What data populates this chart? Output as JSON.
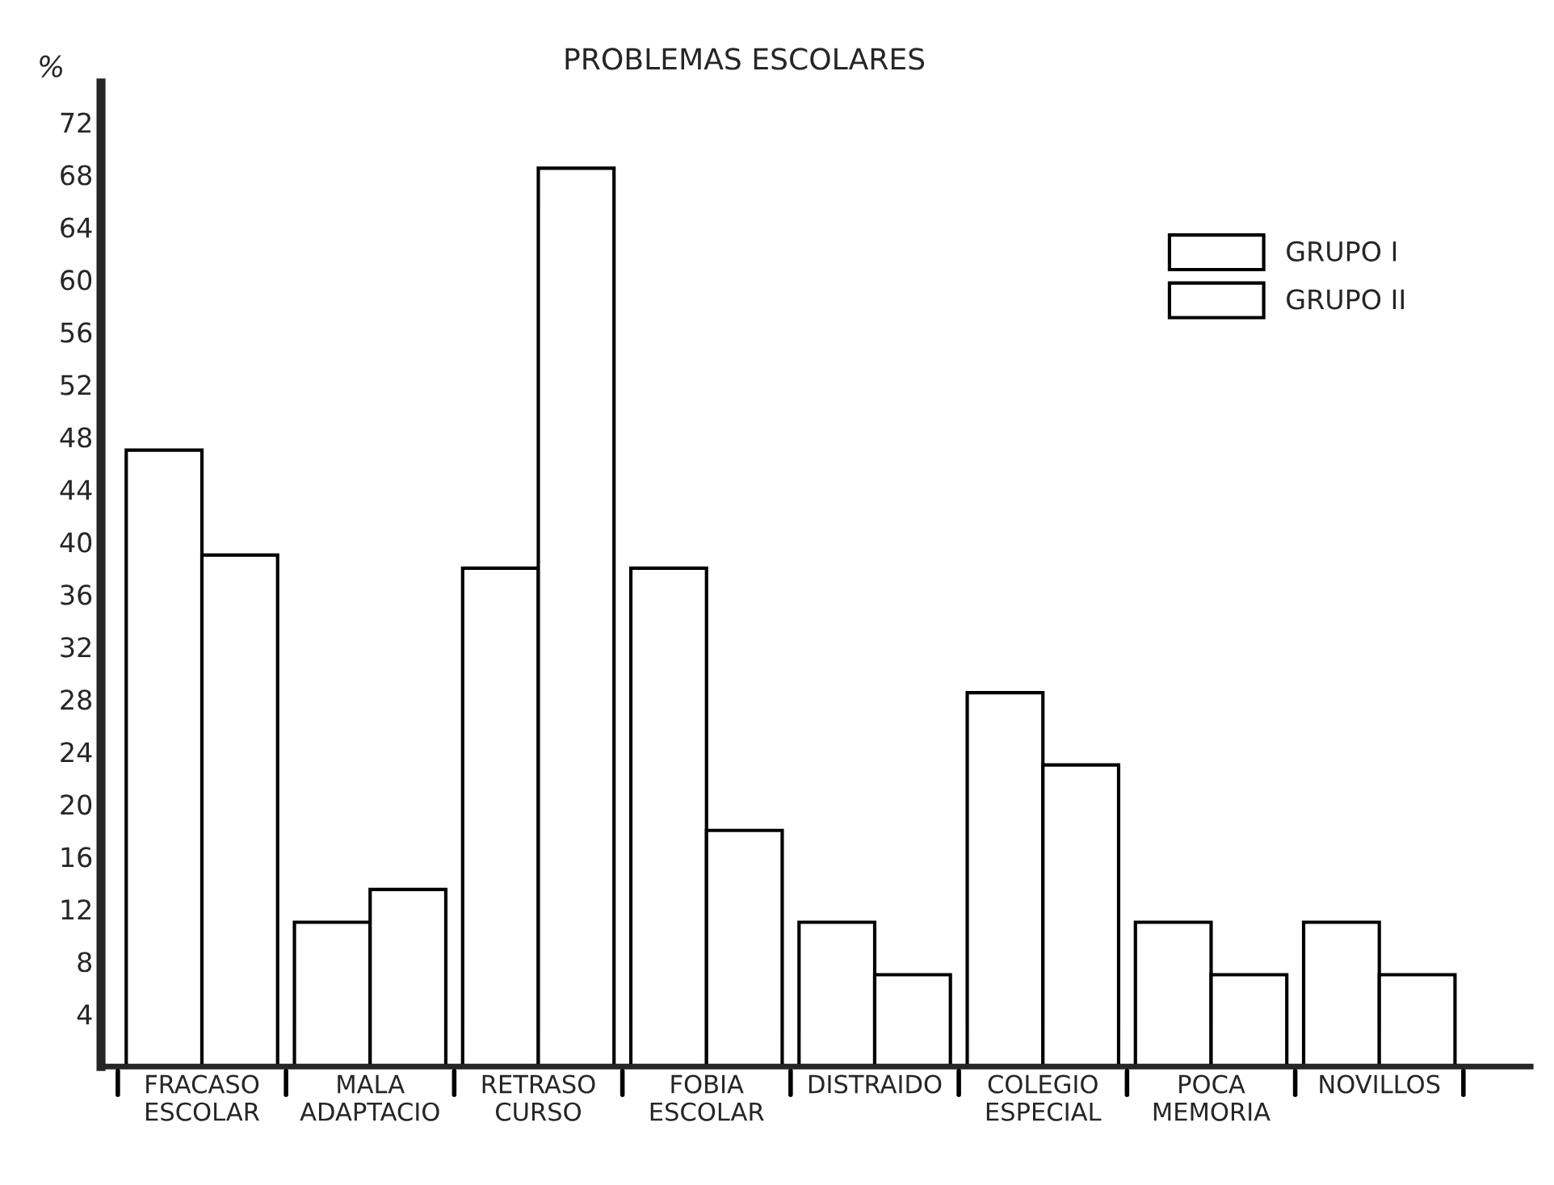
{
  "chart_data": {
    "type": "bar",
    "title": "PROBLEMAS ESCOLARES",
    "ylabel": "%",
    "categories": [
      "FRACASO\nESCOLAR",
      "MALA\nADAPTACIO",
      "RETRASO\nCURSO",
      "FOBIA\nESCOLAR",
      "DISTRAIDO",
      "COLEGIO\nESPECIAL",
      "POCA\nMEMORIA",
      "NOVILLOS"
    ],
    "series": [
      {
        "name": "GRUPO I",
        "color": "#ffffff",
        "values": [
          47,
          11,
          38,
          38,
          11,
          28.5,
          11,
          11
        ]
      },
      {
        "name": "GRUPO II",
        "color": "#ffffff",
        "values": [
          39,
          13.5,
          68.5,
          18,
          7,
          23,
          7,
          7
        ]
      }
    ],
    "ylim": [
      0,
      75
    ],
    "yticks": [
      4,
      8,
      12,
      16,
      20,
      24,
      28,
      32,
      36,
      40,
      44,
      48,
      52,
      56,
      60,
      64,
      68,
      72
    ],
    "grid": false,
    "legend": "top right"
  }
}
